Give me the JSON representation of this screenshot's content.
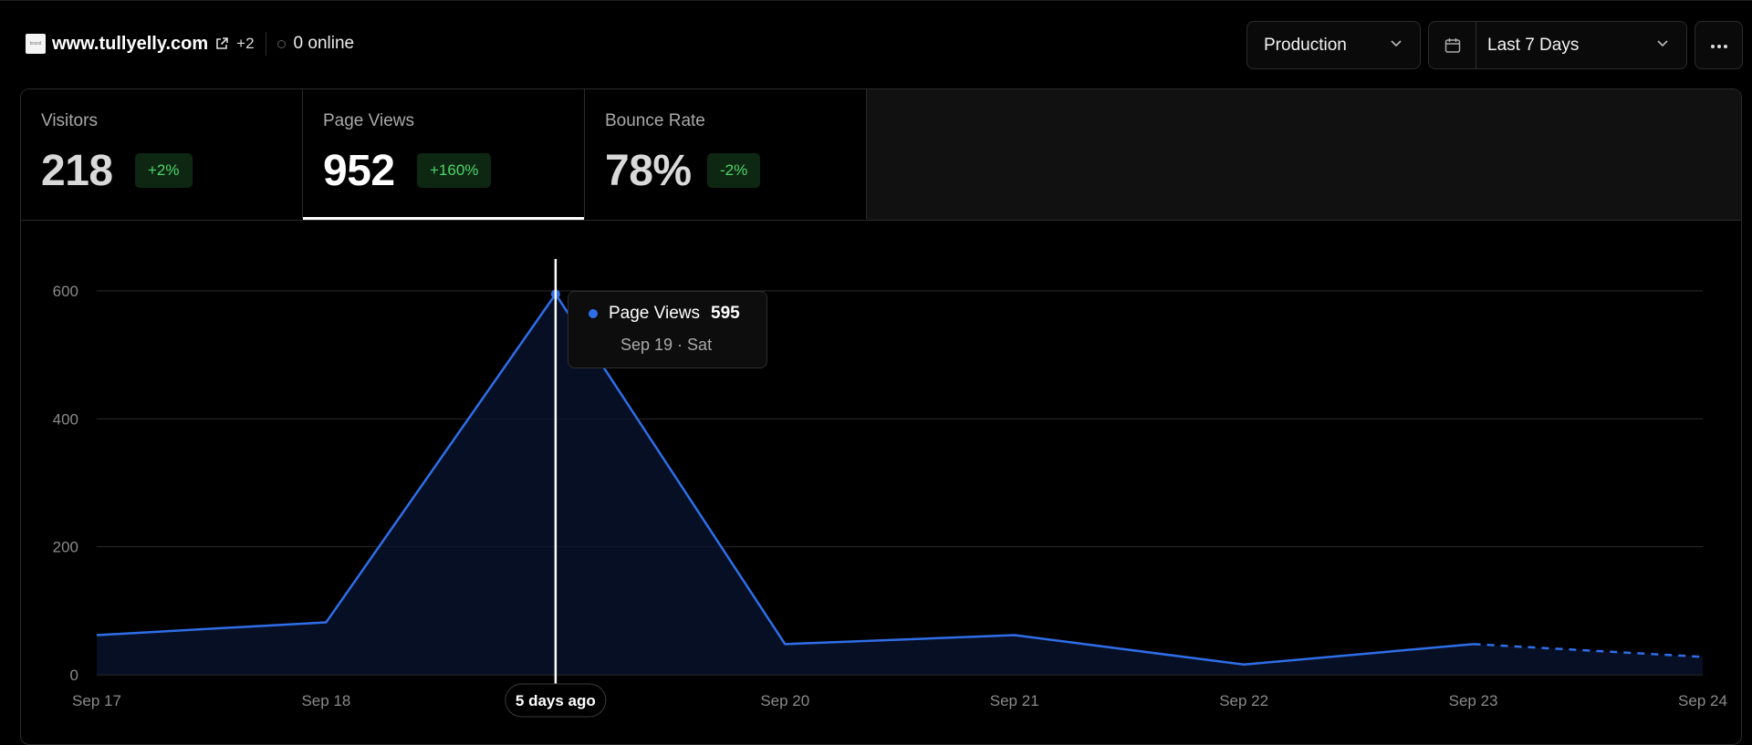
{
  "header": {
    "favicon_text": "brand",
    "domain": "www.tullyelly.com",
    "extra_domains": "+2",
    "online": "0 online"
  },
  "controls": {
    "environment": "Production",
    "date_range": "Last 7 Days"
  },
  "icons": [
    "external-link-icon",
    "chevron-down-icon",
    "calendar-icon",
    "more-icon"
  ],
  "tabs": [
    {
      "label": "Visitors",
      "value": "218",
      "change": "+2%",
      "active": false
    },
    {
      "label": "Page Views",
      "value": "952",
      "change": "+160%",
      "active": true
    },
    {
      "label": "Bounce Rate",
      "value": "78%",
      "change": "-2%",
      "active": false
    }
  ],
  "colors": {
    "line": "#2f6ee8",
    "badge_text": "#4fd46a",
    "badge_bg": "#0d2712"
  },
  "tooltip": {
    "series": "Page Views",
    "value": "595",
    "date": "Sep 19 · Sat"
  },
  "cursor_label": "5 days ago",
  "chart_data": {
    "type": "area",
    "categories": [
      "Sep 17",
      "Sep 18",
      "Sep 19",
      "Sep 20",
      "Sep 21",
      "Sep 22",
      "Sep 23",
      "Sep 24"
    ],
    "x_tick_labels": [
      "Sep 17",
      "Sep 18",
      "5 days ago",
      "Sep 20",
      "Sep 21",
      "Sep 22",
      "Sep 23",
      "Sep 24"
    ],
    "series": [
      {
        "name": "Page Views",
        "values": [
          62,
          82,
          595,
          48,
          62,
          16,
          48,
          28
        ],
        "dashed_last_segment": true
      }
    ],
    "yticks": [
      0,
      200,
      400,
      600
    ],
    "ylim": [
      0,
      650
    ],
    "highlight_index": 2,
    "grid": true
  }
}
